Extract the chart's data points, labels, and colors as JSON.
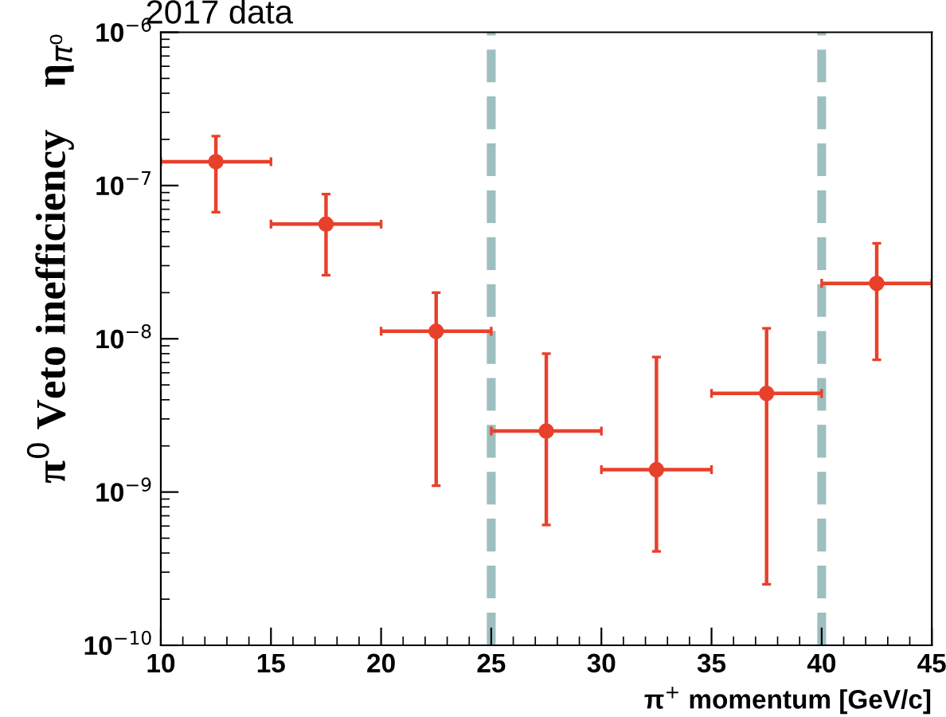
{
  "chart_data": {
    "type": "scatter",
    "title": "2017 data",
    "xlabel": "π$^{+}$ momentum [GeV/c]",
    "ylabel": "π$^{0}$ Veto inefficiency    η$_{π⁰}$",
    "x": [
      12.5,
      17.5,
      22.5,
      27.5,
      32.5,
      37.5,
      42.5
    ],
    "series": [
      {
        "color": "#e8402a",
        "values": [
          1.43e-07,
          5.6e-08,
          1.12e-08,
          2.5e-09,
          1.4e-09,
          4.4e-09,
          2.3e-08
        ],
        "errors": [
          [
            6.7e-08,
            2.1e-07
          ],
          [
            2.6e-08,
            8.8e-08
          ],
          [
            1.1e-09,
            2e-08
          ],
          [
            6.1e-10,
            8e-09
          ],
          [
            4.1e-10,
            7.6e-09
          ],
          [
            2.5e-10,
            1.17e-08
          ],
          [
            7.3e-09,
            4.2e-08
          ]
        ],
        "xerrors": [
          [
            10,
            15
          ],
          [
            15,
            20
          ],
          [
            20,
            25
          ],
          [
            25,
            30
          ],
          [
            30,
            35
          ],
          [
            35,
            40
          ],
          [
            40,
            45
          ]
        ]
      }
    ],
    "log": "y",
    "marker": "circle",
    "grid": false,
    "legend": false,
    "xlim": [
      10,
      45
    ],
    "xticks": [
      10,
      15,
      20,
      25,
      30,
      35,
      40,
      45
    ],
    "ylim": [
      1e-10,
      1e-06
    ],
    "yticks": [
      {
        "value": 1e-10,
        "label": "10$^{−10}$"
      },
      {
        "value": 1e-09,
        "label": "10$^{−9}$"
      },
      {
        "value": 1e-08,
        "label": "10$^{−8}$"
      },
      {
        "value": 1e-07,
        "label": "10$^{−7}$"
      },
      {
        "value": 1e-06,
        "label": "10$^{−6}$"
      }
    ],
    "ref_lines": [
      {
        "axis": "x",
        "value": 25,
        "color": "#9dbfbf",
        "line_style": "dashed"
      },
      {
        "axis": "x",
        "value": 40,
        "color": "#9dbfbf",
        "line_style": "dashed"
      }
    ]
  }
}
